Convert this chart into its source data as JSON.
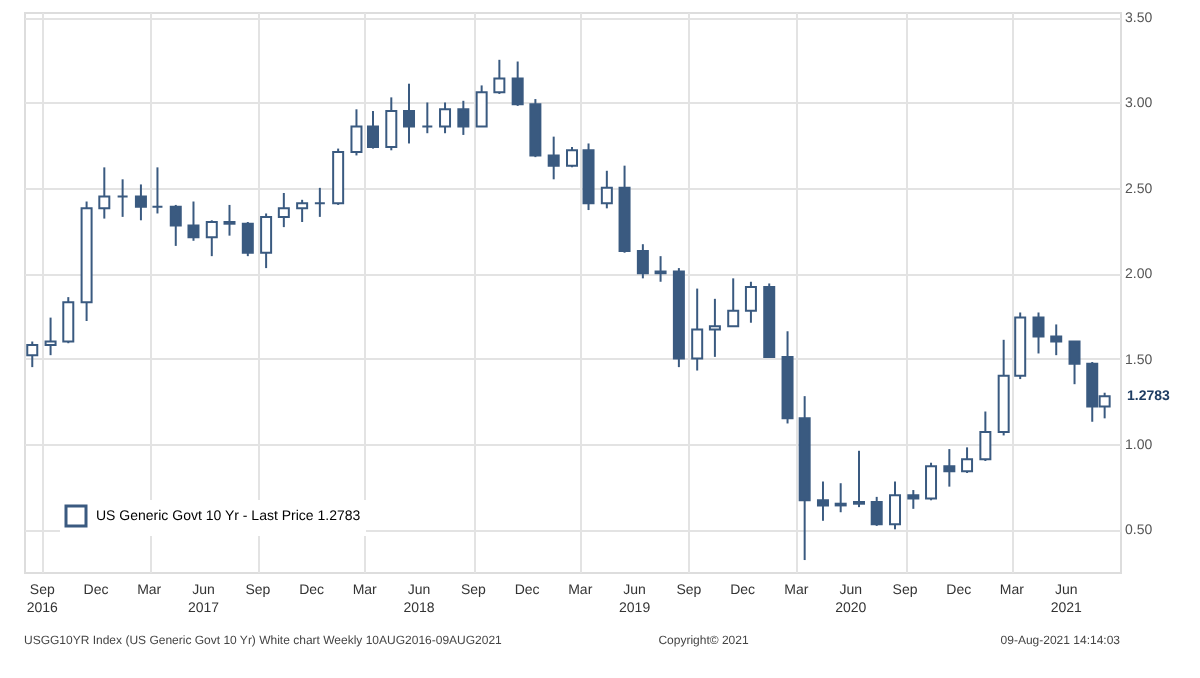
{
  "chart_data": {
    "type": "candlestick",
    "series": [
      {
        "name": "US Generic Govt 10 Yr - Last Price 1.2783",
        "color": "#3a5a80",
        "ohlc": [
          [
            1.52,
            1.6,
            1.45,
            1.58
          ],
          [
            1.58,
            1.74,
            1.52,
            1.6
          ],
          [
            1.6,
            1.86,
            1.59,
            1.83
          ],
          [
            1.83,
            2.42,
            1.72,
            2.38
          ],
          [
            2.38,
            2.62,
            2.32,
            2.45
          ],
          [
            2.45,
            2.55,
            2.33,
            2.45
          ],
          [
            2.45,
            2.52,
            2.31,
            2.39
          ],
          [
            2.39,
            2.62,
            2.35,
            2.39
          ],
          [
            2.39,
            2.4,
            2.16,
            2.28
          ],
          [
            2.28,
            2.42,
            2.19,
            2.21
          ],
          [
            2.21,
            2.31,
            2.1,
            2.3
          ],
          [
            2.3,
            2.4,
            2.22,
            2.29
          ],
          [
            2.29,
            2.3,
            2.1,
            2.12
          ],
          [
            2.12,
            2.35,
            2.03,
            2.33
          ],
          [
            2.33,
            2.47,
            2.27,
            2.38
          ],
          [
            2.38,
            2.43,
            2.3,
            2.41
          ],
          [
            2.41,
            2.5,
            2.33,
            2.41
          ],
          [
            2.41,
            2.73,
            2.4,
            2.71
          ],
          [
            2.71,
            2.96,
            2.69,
            2.86
          ],
          [
            2.86,
            2.95,
            2.73,
            2.74
          ],
          [
            2.74,
            3.03,
            2.72,
            2.95
          ],
          [
            2.95,
            3.11,
            2.76,
            2.86
          ],
          [
            2.86,
            3.0,
            2.82,
            2.86
          ],
          [
            2.86,
            3.0,
            2.82,
            2.96
          ],
          [
            2.96,
            3.01,
            2.81,
            2.86
          ],
          [
            2.86,
            3.1,
            2.86,
            3.06
          ],
          [
            3.06,
            3.25,
            3.05,
            3.14
          ],
          [
            3.14,
            3.24,
            2.98,
            2.99
          ],
          [
            2.99,
            3.02,
            2.68,
            2.69
          ],
          [
            2.69,
            2.8,
            2.55,
            2.63
          ],
          [
            2.63,
            2.74,
            2.62,
            2.72
          ],
          [
            2.72,
            2.76,
            2.37,
            2.41
          ],
          [
            2.41,
            2.6,
            2.38,
            2.5
          ],
          [
            2.5,
            2.63,
            2.12,
            2.13
          ],
          [
            2.13,
            2.17,
            1.97,
            2.0
          ],
          [
            2.0,
            2.1,
            1.95,
            2.01
          ],
          [
            2.01,
            2.03,
            1.45,
            1.5
          ],
          [
            1.5,
            1.91,
            1.43,
            1.67
          ],
          [
            1.67,
            1.85,
            1.51,
            1.69
          ],
          [
            1.69,
            1.97,
            1.69,
            1.78
          ],
          [
            1.78,
            1.95,
            1.71,
            1.92
          ],
          [
            1.92,
            1.94,
            1.51,
            1.51
          ],
          [
            1.51,
            1.66,
            1.12,
            1.15
          ],
          [
            1.15,
            1.28,
            0.32,
            0.67
          ],
          [
            0.67,
            0.78,
            0.55,
            0.64
          ],
          [
            0.64,
            0.77,
            0.6,
            0.65
          ],
          [
            0.65,
            0.96,
            0.63,
            0.66
          ],
          [
            0.66,
            0.69,
            0.52,
            0.53
          ],
          [
            0.53,
            0.78,
            0.5,
            0.7
          ],
          [
            0.7,
            0.73,
            0.62,
            0.68
          ],
          [
            0.68,
            0.89,
            0.67,
            0.87
          ],
          [
            0.87,
            0.97,
            0.75,
            0.84
          ],
          [
            0.84,
            0.98,
            0.83,
            0.91
          ],
          [
            0.91,
            1.19,
            0.9,
            1.07
          ],
          [
            1.07,
            1.61,
            1.05,
            1.4
          ],
          [
            1.4,
            1.77,
            1.38,
            1.74
          ],
          [
            1.74,
            1.77,
            1.53,
            1.63
          ],
          [
            1.63,
            1.7,
            1.52,
            1.6
          ],
          [
            1.6,
            1.6,
            1.35,
            1.47
          ],
          [
            1.47,
            1.48,
            1.13,
            1.22
          ],
          [
            1.22,
            1.3,
            1.15,
            1.28
          ]
        ]
      }
    ],
    "x": [
      "2016-08-15",
      "2016-09-15",
      "2016-10-15",
      "2016-11-15",
      "2016-12-15",
      "2017-01-15",
      "2017-02-15",
      "2017-03-15",
      "2017-04-15",
      "2017-05-15",
      "2017-06-15",
      "2017-07-15",
      "2017-08-15",
      "2017-09-15",
      "2017-10-15",
      "2017-11-15",
      "2017-12-15",
      "2018-01-15",
      "2018-02-15",
      "2018-03-15",
      "2018-04-15",
      "2018-05-15",
      "2018-06-15",
      "2018-07-15",
      "2018-08-15",
      "2018-09-15",
      "2018-10-15",
      "2018-11-15",
      "2018-12-15",
      "2019-01-15",
      "2019-02-15",
      "2019-03-15",
      "2019-04-15",
      "2019-05-15",
      "2019-06-15",
      "2019-07-15",
      "2019-08-15",
      "2019-09-15",
      "2019-10-15",
      "2019-11-15",
      "2019-12-15",
      "2020-01-15",
      "2020-02-15",
      "2020-03-15",
      "2020-04-15",
      "2020-05-15",
      "2020-06-15",
      "2020-07-15",
      "2020-08-15",
      "2020-09-15",
      "2020-10-15",
      "2020-11-15",
      "2020-12-15",
      "2021-01-15",
      "2021-02-15",
      "2021-03-15",
      "2021-04-15",
      "2021-05-15",
      "2021-06-15",
      "2021-07-15",
      "2021-08-05"
    ],
    "xlim": [
      "2016-08-01",
      "2021-08-31"
    ],
    "xticks": [
      {
        "value": "2016-09-01",
        "label": "Sep 2016"
      },
      {
        "value": "2016-12-01",
        "label": "Dec"
      },
      {
        "value": "2017-03-01",
        "label": "Mar"
      },
      {
        "value": "2017-06-01",
        "label": "Jun 2017"
      },
      {
        "value": "2017-09-01",
        "label": "Sep"
      },
      {
        "value": "2017-12-01",
        "label": "Dec"
      },
      {
        "value": "2018-03-01",
        "label": "Mar"
      },
      {
        "value": "2018-06-01",
        "label": "Jun 2018"
      },
      {
        "value": "2018-09-01",
        "label": "Sep"
      },
      {
        "value": "2018-12-01",
        "label": "Dec"
      },
      {
        "value": "2019-03-01",
        "label": "Mar"
      },
      {
        "value": "2019-06-01",
        "label": "Jun 2019"
      },
      {
        "value": "2019-09-01",
        "label": "Sep"
      },
      {
        "value": "2019-12-01",
        "label": "Dec"
      },
      {
        "value": "2020-03-01",
        "label": "Mar"
      },
      {
        "value": "2020-06-01",
        "label": "Jun 2020"
      },
      {
        "value": "2020-09-01",
        "label": "Sep"
      },
      {
        "value": "2020-12-01",
        "label": "Dec"
      },
      {
        "value": "2021-03-01",
        "label": "Mar"
      },
      {
        "value": "2021-06-01",
        "label": "Jun 2021"
      }
    ],
    "ylim": [
      0.25,
      3.53
    ],
    "yticks": [
      {
        "value": 0.5,
        "label": "0.50"
      },
      {
        "value": 1.0,
        "label": "1.00"
      },
      {
        "value": 1.5,
        "label": "1.50"
      },
      {
        "value": 2.0,
        "label": "2.00"
      },
      {
        "value": 2.5,
        "label": "2.50"
      },
      {
        "value": 3.0,
        "label": "3.00"
      },
      {
        "value": 3.5,
        "label": "3.50"
      }
    ],
    "grid": true,
    "legend": "bottom left",
    "annotations": [
      {
        "text": "1.2783",
        "x": "2021-08-09",
        "y": 1.2783
      },
      "USGG10YR Index (US Generic Govt 10 Yr) White chart Weekly 10AUG2016-09AUG2021",
      "Copyright© 2021",
      "09-Aug-2021 14:14:03"
    ]
  }
}
